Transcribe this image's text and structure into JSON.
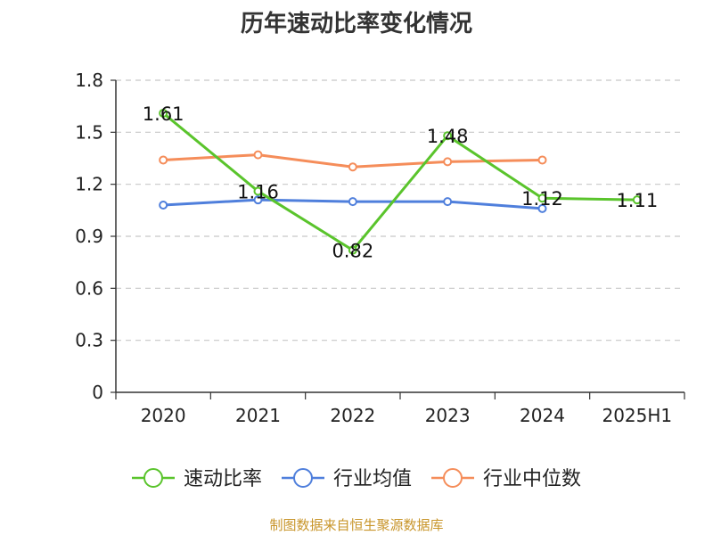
{
  "title": "历年速动比率变化情况",
  "source": "制图数据来自恒生聚源数据库",
  "colors": {
    "axis": "#333333",
    "grid": "#c8c8c8",
    "text": "#222222"
  },
  "chart_data": {
    "type": "line",
    "title": "历年速动比率变化情况",
    "categories": [
      "2020",
      "2021",
      "2022",
      "2023",
      "2024",
      "2025H1"
    ],
    "ylim": [
      0,
      1.8
    ],
    "yticks": [
      "0",
      "0.3",
      "0.6",
      "0.9",
      "1.2",
      "1.5",
      "1.8"
    ],
    "ytick_values": [
      0,
      0.3,
      0.6,
      0.9,
      1.2,
      1.5,
      1.8
    ],
    "grid": true,
    "legend_position": "bottom",
    "series": [
      {
        "name": "速动比率",
        "color": "#5ac42c",
        "values": [
          1.61,
          1.16,
          0.82,
          1.48,
          1.12,
          1.11
        ],
        "labels": [
          "1.61",
          "1.16",
          "0.82",
          "1.48",
          "1.12",
          "1.11"
        ]
      },
      {
        "name": "行业均值",
        "color": "#4f7fdc",
        "values": [
          1.08,
          1.11,
          1.1,
          1.1,
          1.06,
          null
        ]
      },
      {
        "name": "行业中位数",
        "color": "#f58d5a",
        "values": [
          1.34,
          1.37,
          1.3,
          1.33,
          1.34,
          null
        ]
      }
    ]
  }
}
